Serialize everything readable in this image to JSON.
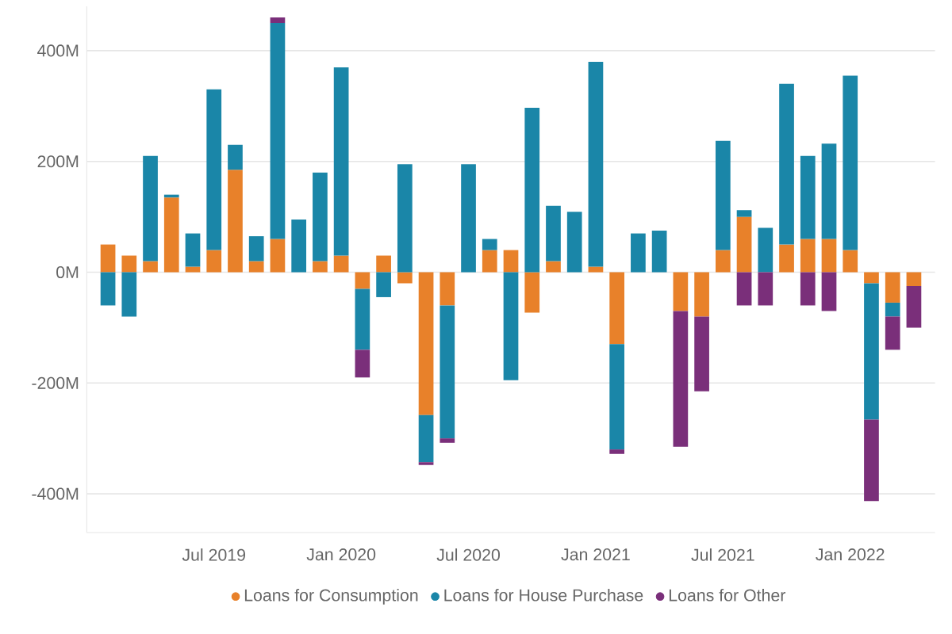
{
  "chart_data": {
    "type": "bar",
    "stacked": true,
    "x": [
      "2019-02",
      "2019-03",
      "2019-04",
      "2019-05",
      "2019-06",
      "2019-07",
      "2019-08",
      "2019-09",
      "2019-10",
      "2019-11",
      "2019-12",
      "2020-01",
      "2020-02",
      "2020-03",
      "2020-04",
      "2020-05",
      "2020-06",
      "2020-07",
      "2020-08",
      "2020-09",
      "2020-10",
      "2020-11",
      "2020-12",
      "2021-01",
      "2021-02",
      "2021-03",
      "2021-04",
      "2021-05",
      "2021-06",
      "2021-07",
      "2021-08",
      "2021-09",
      "2021-10",
      "2021-11",
      "2021-12",
      "2022-01",
      "2022-02",
      "2022-03",
      "2022-04"
    ],
    "series": [
      {
        "name": "Loans for Consumption",
        "color": "#e8812a",
        "values": [
          50,
          30,
          20,
          135,
          10,
          40,
          185,
          20,
          60,
          null,
          20,
          30,
          -30,
          30,
          -20,
          -258,
          -60,
          null,
          40,
          40,
          -73,
          20,
          null,
          10,
          -130,
          null,
          null,
          -70,
          -80,
          40,
          100,
          null,
          50,
          60,
          60,
          40,
          -20,
          -55,
          -25
        ]
      },
      {
        "name": "Loans for House Purchase",
        "color": "#1a86a8",
        "values": [
          -60,
          -80,
          190,
          5,
          60,
          290,
          45,
          45,
          390,
          95,
          160,
          340,
          -110,
          -45,
          195,
          -85,
          -240,
          195,
          20,
          -195,
          297,
          100,
          109,
          370,
          -190,
          70,
          75,
          null,
          null,
          197,
          12,
          80,
          290,
          150,
          172,
          315,
          -246,
          -25,
          null
        ]
      },
      {
        "name": "Loans for Other",
        "color": "#7a2f7a",
        "values": [
          null,
          null,
          null,
          null,
          null,
          null,
          null,
          null,
          10,
          null,
          null,
          null,
          -50,
          null,
          null,
          -5,
          -8,
          null,
          null,
          null,
          null,
          null,
          null,
          null,
          -8,
          null,
          null,
          -245,
          -135,
          null,
          -60,
          -60,
          null,
          -60,
          -70,
          null,
          -147,
          -60,
          -75
        ]
      }
    ],
    "xticks": [
      {
        "value": "2019-07",
        "label": "Jul 2019"
      },
      {
        "value": "2020-01",
        "label": "Jan 2020"
      },
      {
        "value": "2020-07",
        "label": "Jul 2020"
      },
      {
        "value": "2021-01",
        "label": "Jan 2021"
      },
      {
        "value": "2021-07",
        "label": "Jul 2021"
      },
      {
        "value": "2022-01",
        "label": "Jan 2022"
      }
    ],
    "yticks": [
      {
        "value": -400,
        "label": "-400M"
      },
      {
        "value": -200,
        "label": "-200M"
      },
      {
        "value": 0,
        "label": "0M"
      },
      {
        "value": 200,
        "label": "200M"
      },
      {
        "value": 400,
        "label": "400M"
      }
    ],
    "xlim": [
      "2019-01",
      "2022-05"
    ],
    "ylim": [
      -470,
      480
    ],
    "grid": "y",
    "legend": "bottom"
  }
}
